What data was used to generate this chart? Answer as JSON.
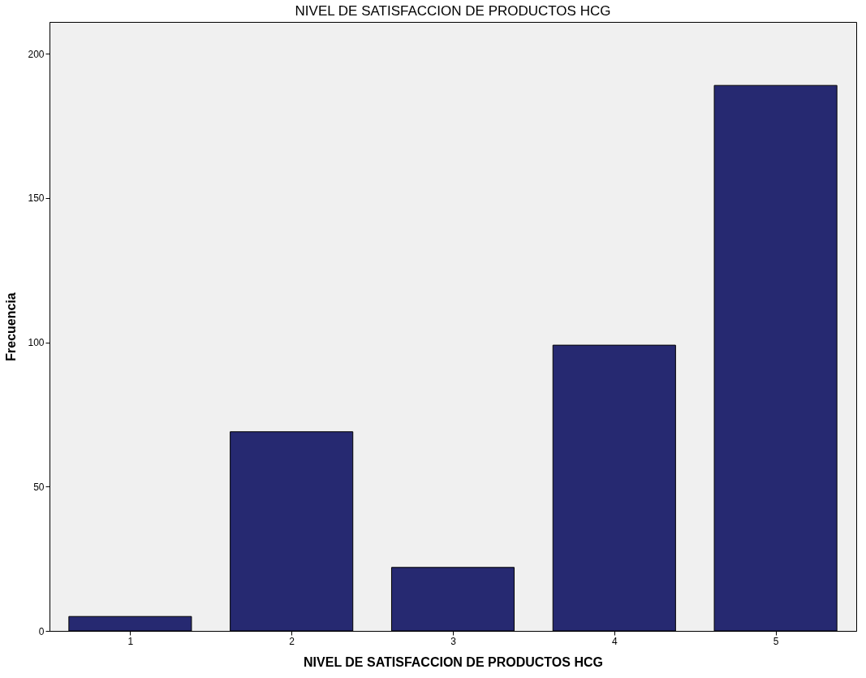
{
  "chart_data": {
    "type": "bar",
    "title": "NIVEL DE SATISFACCION DE PRODUCTOS HCG",
    "xlabel": "NIVEL DE SATISFACCION DE PRODUCTOS HCG",
    "ylabel": "Frecuencia",
    "categories": [
      "1",
      "2",
      "3",
      "4",
      "5"
    ],
    "values": [
      5,
      69,
      22,
      99,
      189
    ],
    "color": "#262971",
    "ylim": [
      0,
      211
    ],
    "yticks": [
      0,
      50,
      100,
      150,
      200
    ],
    "grid": false
  }
}
